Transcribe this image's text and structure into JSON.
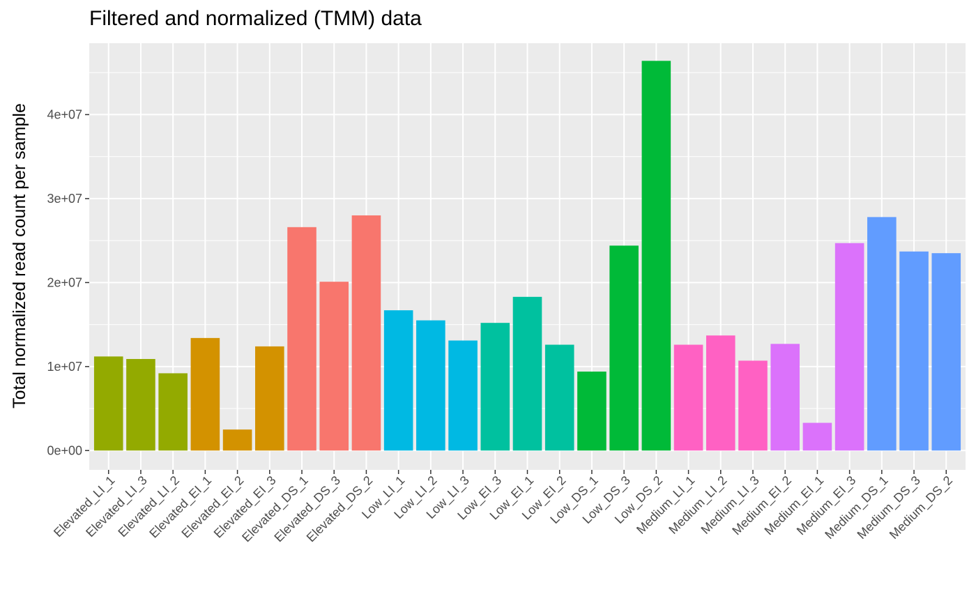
{
  "chart_data": {
    "type": "bar",
    "title": "Filtered and normalized (TMM) data",
    "xlabel": "",
    "ylabel": "Total normalized read count per sample",
    "ylim": [
      -2300000,
      48500000
    ],
    "y_ticks": [
      0,
      10000000,
      20000000,
      30000000,
      40000000
    ],
    "y_tick_labels": [
      "0e+00",
      "1e+07",
      "2e+07",
      "3e+07",
      "4e+07"
    ],
    "grid": true,
    "legend": "none",
    "categories": [
      "Elevated_LI_1",
      "Elevated_LI_3",
      "Elevated_LI_2",
      "Elevated_EI_1",
      "Elevated_EI_2",
      "Elevated_EI_3",
      "Elevated_DS_1",
      "Elevated_DS_3",
      "Elevated_DS_2",
      "Low_LI_1",
      "Low_LI_2",
      "Low_LI_3",
      "Low_EI_3",
      "Low_EI_1",
      "Low_EI_2",
      "Low_DS_1",
      "Low_DS_3",
      "Low_DS_2",
      "Medium_LI_1",
      "Medium_LI_2",
      "Medium_LI_3",
      "Medium_EI_2",
      "Medium_EI_1",
      "Medium_EI_3",
      "Medium_DS_1",
      "Medium_DS_3",
      "Medium_DS_2"
    ],
    "values": [
      11200000,
      10900000,
      9200000,
      13400000,
      2500000,
      12400000,
      26600000,
      20100000,
      28000000,
      16700000,
      15500000,
      13100000,
      15200000,
      18300000,
      12600000,
      9400000,
      24400000,
      46400000,
      12600000,
      13700000,
      10700000,
      12700000,
      3300000,
      24700000,
      27800000,
      23700000,
      23500000
    ],
    "bar_colors": [
      "#93AA00",
      "#93AA00",
      "#93AA00",
      "#D39200",
      "#D39200",
      "#D39200",
      "#F8766D",
      "#F8766D",
      "#F8766D",
      "#00B9E3",
      "#00B9E3",
      "#00B9E3",
      "#00C19F",
      "#00C19F",
      "#00C19F",
      "#00BA38",
      "#00BA38",
      "#00BA38",
      "#FF61C3",
      "#FF61C3",
      "#FF61C3",
      "#DB72FB",
      "#DB72FB",
      "#DB72FB",
      "#619CFF",
      "#619CFF",
      "#619CFF"
    ],
    "panel_color": "#EBEBEB",
    "grid_color": "#FFFFFF",
    "axis_text_color": "#4D4D4D"
  }
}
